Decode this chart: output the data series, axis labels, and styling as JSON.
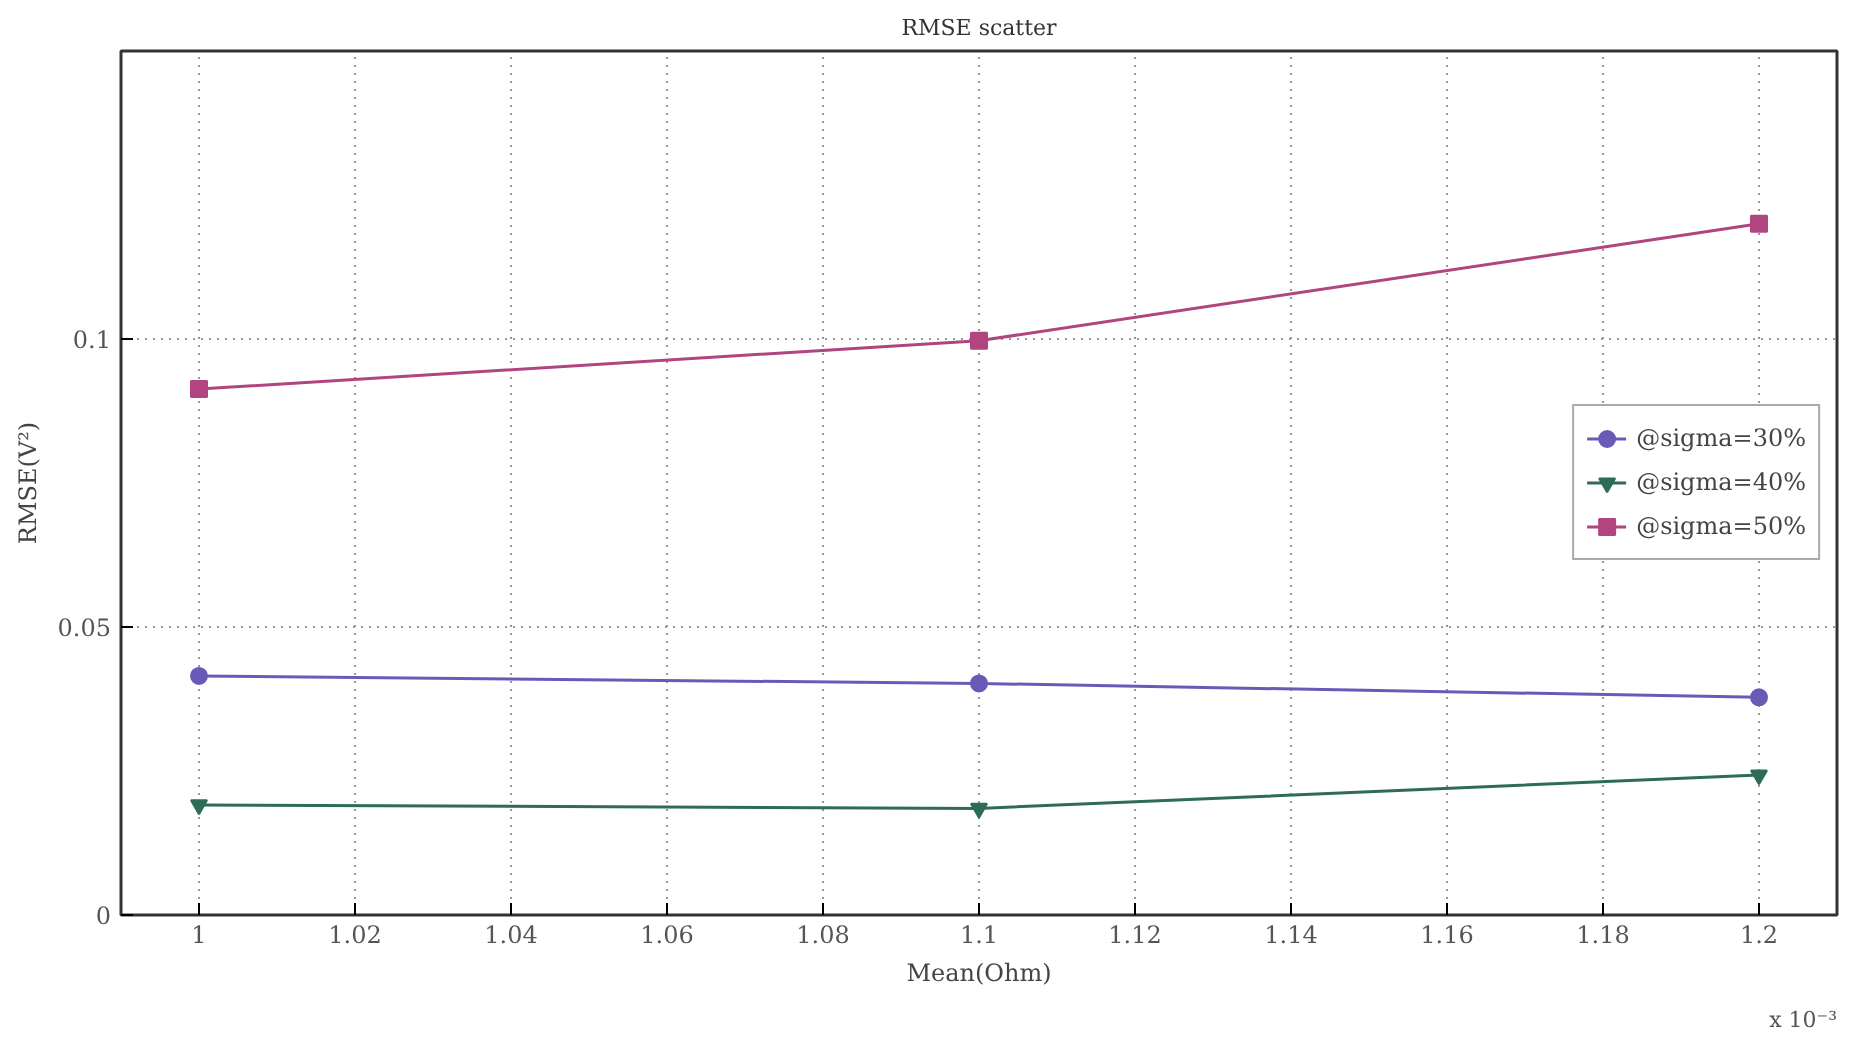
{
  "chart_data": {
    "type": "line",
    "title": "RMSE scatter",
    "xlabel": "Mean(Ohm)",
    "ylabel": "RMSE(V²)",
    "annotations": [
      "x 10⁻³"
    ],
    "x": [
      1,
      1.1,
      1.2
    ],
    "series": [
      {
        "name": "@sigma=30%",
        "color": "#6a5ab8",
        "marker": "circle",
        "values": [
          0.0415,
          0.0402,
          0.0378
        ]
      },
      {
        "name": "@sigma=40%",
        "color": "#2e6b58",
        "marker": "triangle",
        "values": [
          0.0191,
          0.0185,
          0.0243
        ]
      },
      {
        "name": "@sigma=50%",
        "color": "#b0457f",
        "marker": "square",
        "values": [
          0.0913,
          0.0997,
          0.12
        ]
      }
    ],
    "xlim": [
      0.99,
      1.21
    ],
    "xticks": [
      1,
      1.02,
      1.04,
      1.06,
      1.08,
      1.1,
      1.12,
      1.14,
      1.16,
      1.18,
      1.2
    ],
    "ylim": [
      0,
      0.15
    ],
    "yticks": [
      0,
      0.05,
      0.1
    ],
    "grid": true,
    "legend": "right",
    "line_style": "solid"
  }
}
